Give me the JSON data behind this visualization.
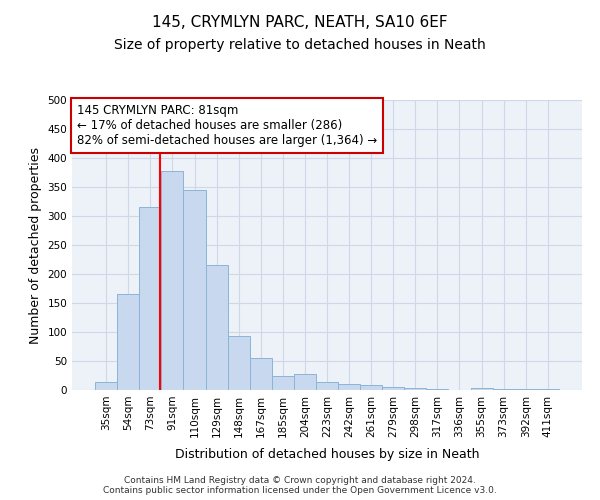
{
  "title": "145, CRYMLYN PARC, NEATH, SA10 6EF",
  "subtitle": "Size of property relative to detached houses in Neath",
  "xlabel": "Distribution of detached houses by size in Neath",
  "ylabel": "Number of detached properties",
  "footer_line1": "Contains HM Land Registry data © Crown copyright and database right 2024.",
  "footer_line2": "Contains public sector information licensed under the Open Government Licence v3.0.",
  "categories": [
    "35sqm",
    "54sqm",
    "73sqm",
    "91sqm",
    "110sqm",
    "129sqm",
    "148sqm",
    "167sqm",
    "185sqm",
    "204sqm",
    "223sqm",
    "242sqm",
    "261sqm",
    "279sqm",
    "298sqm",
    "317sqm",
    "336sqm",
    "355sqm",
    "373sqm",
    "392sqm",
    "411sqm"
  ],
  "values": [
    13,
    165,
    315,
    378,
    345,
    215,
    93,
    55,
    24,
    28,
    13,
    10,
    8,
    6,
    4,
    2,
    0,
    3,
    1,
    1,
    2
  ],
  "bar_color": "#c8d9ef",
  "bar_edge_color": "#8ab4d8",
  "red_line_x": 2.44,
  "annotation_line1": "145 CRYMLYN PARC: 81sqm",
  "annotation_line2": "← 17% of detached houses are smaller (286)",
  "annotation_line3": "82% of semi-detached houses are larger (1,364) →",
  "annotation_box_color": "#ffffff",
  "annotation_box_edge": "#cc0000",
  "ylim": [
    0,
    500
  ],
  "yticks": [
    0,
    50,
    100,
    150,
    200,
    250,
    300,
    350,
    400,
    450,
    500
  ],
  "grid_color": "#d0d8e8",
  "bg_color": "#edf1f8",
  "title_fontsize": 11,
  "subtitle_fontsize": 10,
  "axis_label_fontsize": 9,
  "tick_fontsize": 7.5,
  "annotation_fontsize": 8.5,
  "footer_fontsize": 6.5
}
